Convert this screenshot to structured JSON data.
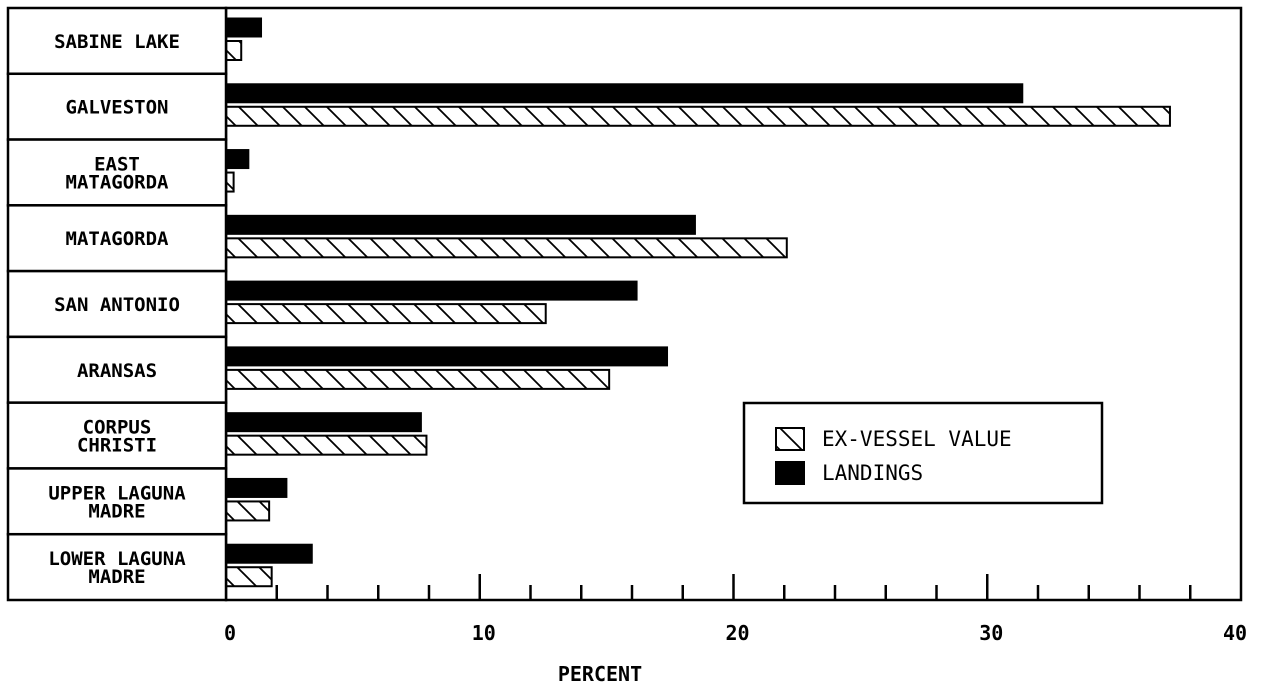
{
  "chart_data": {
    "type": "bar",
    "orientation": "horizontal",
    "categories": [
      [
        "SABINE LAKE"
      ],
      [
        "GALVESTON"
      ],
      [
        "EAST",
        "MATAGORDA"
      ],
      [
        "MATAGORDA"
      ],
      [
        "SAN ANTONIO"
      ],
      [
        "ARANSAS"
      ],
      [
        "CORPUS",
        "CHRISTI"
      ],
      [
        "UPPER LAGUNA",
        "MADRE"
      ],
      [
        "LOWER LAGUNA",
        "MADRE"
      ]
    ],
    "series": [
      {
        "name": "LANDINGS",
        "fill": "solid",
        "values": [
          1.4,
          31.4,
          0.9,
          18.5,
          16.2,
          17.4,
          7.7,
          2.4,
          3.4
        ]
      },
      {
        "name": "EX-VESSEL VALUE",
        "fill": "hatched",
        "values": [
          0.6,
          37.2,
          0.3,
          22.1,
          12.6,
          15.1,
          7.9,
          1.7,
          1.8
        ]
      }
    ],
    "xlabel": "PERCENT",
    "ylabel": "",
    "title": "",
    "xlim": [
      0,
      40
    ],
    "major_ticks": [
      0,
      10,
      20,
      30,
      40
    ],
    "minor_tick_step": 2,
    "grid": false,
    "legend_position": "lower-right"
  },
  "colors": {
    "ink": "#000000",
    "background": "#ffffff"
  }
}
